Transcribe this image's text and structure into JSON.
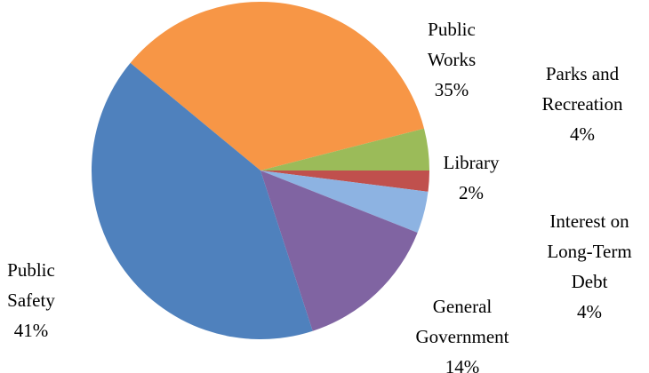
{
  "chart_data": {
    "type": "pie",
    "categories": [
      "Public Works",
      "Parks and Recreation",
      "Library",
      "Interest on Long-Term Debt",
      "General Government",
      "Public Safety"
    ],
    "values": [
      35,
      4,
      2,
      4,
      14,
      41
    ],
    "value_labels": [
      "35%",
      "4%",
      "2%",
      "4%",
      "14%",
      "41%"
    ],
    "colors": [
      "#f79646",
      "#9bbb59",
      "#c0504d",
      "#8db3e2",
      "#8064a2",
      "#4f81bd"
    ]
  }
}
